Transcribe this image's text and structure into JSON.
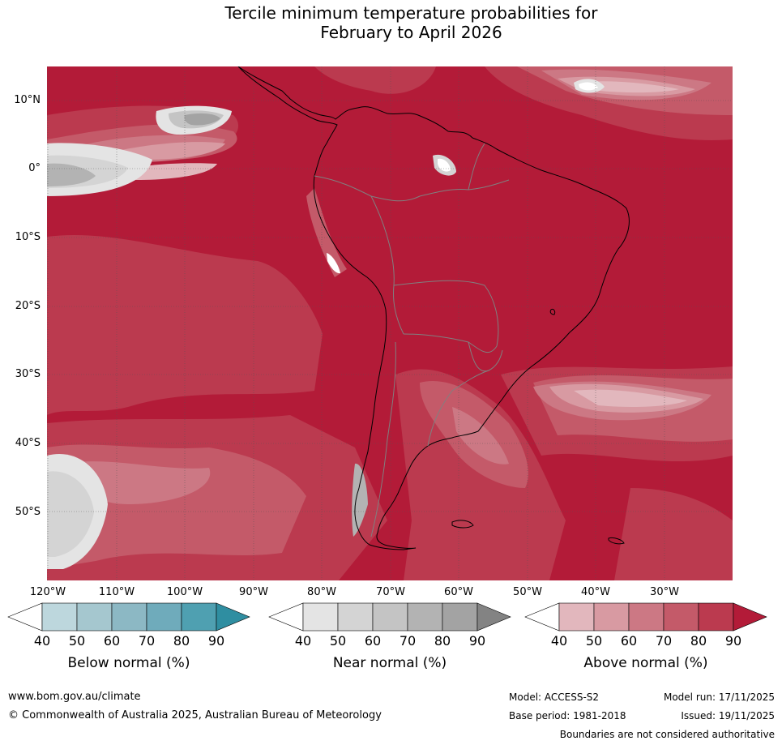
{
  "title": {
    "line1": "Tercile minimum temperature probabilities for",
    "line2": "February to April 2026"
  },
  "latitude_labels": [
    "10°N",
    "0°",
    "10°S",
    "20°S",
    "30°S",
    "40°S",
    "50°S"
  ],
  "longitude_labels": [
    "120°W",
    "110°W",
    "100°W",
    "90°W",
    "80°W",
    "70°W",
    "60°W",
    "50°W",
    "40°W",
    "30°W"
  ],
  "colorbars": {
    "below": {
      "label": "Below normal (%)",
      "ticks": [
        "40",
        "50",
        "60",
        "70",
        "80",
        "90"
      ],
      "colors": [
        "#ffffff",
        "#bdd7dd",
        "#a5c7cf",
        "#8cb8c4",
        "#6fabbb",
        "#4fa0b1",
        "#2f8ea1"
      ]
    },
    "near": {
      "label": "Near normal (%)",
      "ticks": [
        "40",
        "50",
        "60",
        "70",
        "80",
        "90"
      ],
      "colors": [
        "#ffffff",
        "#e4e4e4",
        "#d4d4d4",
        "#c4c4c4",
        "#b3b3b3",
        "#a3a3a3",
        "#838383"
      ]
    },
    "above": {
      "label": "Above normal (%)",
      "ticks": [
        "40",
        "50",
        "60",
        "70",
        "80",
        "90"
      ],
      "colors": [
        "#ffffff",
        "#e2b7bd",
        "#d89aa2",
        "#cc7884",
        "#c45a69",
        "#bb3a4f",
        "#b31b38"
      ]
    }
  },
  "footer": {
    "website": "www.bom.gov.au/climate",
    "copyright": "© Commonwealth of Australia 2025, Australian Bureau of Meteorology",
    "model": "Model: ACCESS-S2",
    "base_period": "Base period: 1981-2018",
    "model_run": "Model run: 17/11/2025",
    "issued": "Issued: 19/11/2025",
    "disclaimer": "Boundaries are not considered authoritative"
  }
}
